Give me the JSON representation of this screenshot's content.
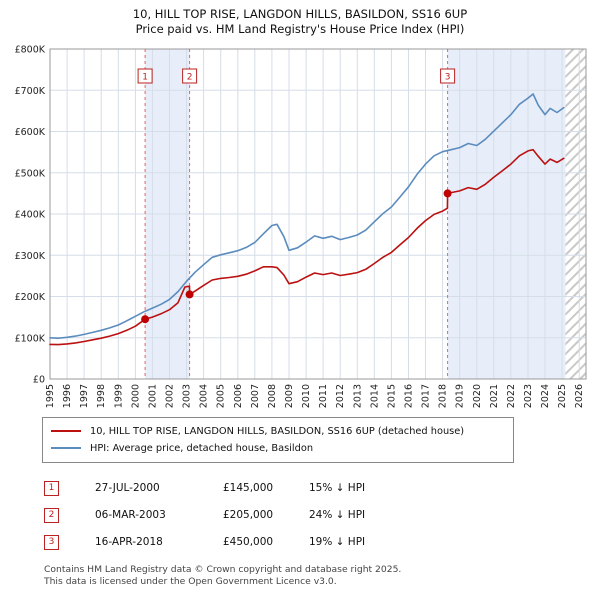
{
  "chart_data": {
    "type": "line",
    "title": "10, HILL TOP RISE, LANGDON HILLS, BASILDON, SS16 6UP",
    "subtitle": "Price paid vs. HM Land Registry's House Price Index (HPI)",
    "xlim": [
      1995,
      2026.4
    ],
    "ylim": [
      0,
      800000
    ],
    "x_ticks": [
      1995,
      1996,
      1997,
      1998,
      1999,
      2000,
      2001,
      2002,
      2003,
      2004,
      2005,
      2006,
      2007,
      2008,
      2009,
      2010,
      2011,
      2012,
      2013,
      2014,
      2015,
      2016,
      2017,
      2018,
      2019,
      2020,
      2021,
      2022,
      2023,
      2024,
      2025,
      2026
    ],
    "y_ticks": [
      0,
      100000,
      200000,
      300000,
      400000,
      500000,
      600000,
      700000,
      800000
    ],
    "y_tick_labels": [
      "£0",
      "£100K",
      "£200K",
      "£300K",
      "£400K",
      "£500K",
      "£600K",
      "£700K",
      "£800K"
    ],
    "grid": true,
    "legend_position": "below",
    "band_color": "#e7eef9",
    "hatch_start": 2025.2,
    "bands": [
      [
        2000.57,
        2003.18
      ],
      [
        2018.29,
        2025.2
      ]
    ],
    "series": [
      {
        "name": "10, HILL TOP RISE, LANGDON HILLS, BASILDON, SS16 6UP (detached house)",
        "color": "#bb1111",
        "x": [
          1995.0,
          1995.5,
          1996.0,
          1996.5,
          1997.0,
          1997.5,
          1998.0,
          1998.5,
          1999.0,
          1999.5,
          2000.0,
          2000.57,
          2001.0,
          2001.5,
          2002.0,
          2002.5,
          2002.9,
          2003.17,
          2003.18,
          2003.5,
          2004.0,
          2004.5,
          2005.0,
          2005.5,
          2006.0,
          2006.5,
          2007.0,
          2007.5,
          2008.0,
          2008.3,
          2008.7,
          2009.0,
          2009.5,
          2010.0,
          2010.5,
          2011.0,
          2011.5,
          2012.0,
          2012.5,
          2013.0,
          2013.5,
          2014.0,
          2014.5,
          2015.0,
          2015.5,
          2016.0,
          2016.5,
          2017.0,
          2017.5,
          2018.0,
          2018.28,
          2018.29,
          2018.5,
          2019.0,
          2019.5,
          2020.0,
          2020.5,
          2021.0,
          2021.5,
          2022.0,
          2022.5,
          2023.0,
          2023.3,
          2023.6,
          2024.0,
          2024.3,
          2024.7,
          2025.1
        ],
        "values": [
          84000,
          83500,
          85000,
          87500,
          91000,
          95000,
          99000,
          104000,
          110000,
          118000,
          128000,
          145000,
          150000,
          158000,
          168000,
          185000,
          223000,
          225000,
          205000,
          213000,
          227000,
          240000,
          244000,
          246000,
          249000,
          254000,
          262000,
          272000,
          272000,
          270000,
          252000,
          231000,
          236000,
          247000,
          257000,
          253000,
          257000,
          251000,
          254000,
          258000,
          266000,
          280000,
          295000,
          307000,
          325000,
          343000,
          365000,
          384000,
          399000,
          407000,
          414000,
          450000,
          452000,
          456000,
          464000,
          460000,
          472000,
          489000,
          505000,
          521000,
          541000,
          553000,
          556000,
          540000,
          521000,
          533000,
          525000,
          535000
        ]
      },
      {
        "name": "HPI: Average price, detached house, Basildon",
        "color": "#5b8cbe",
        "x": [
          1995.0,
          1995.5,
          1996.0,
          1996.5,
          1997.0,
          1997.5,
          1998.0,
          1998.5,
          1999.0,
          1999.5,
          2000.0,
          2000.5,
          2001.0,
          2001.5,
          2002.0,
          2002.5,
          2003.0,
          2003.5,
          2004.0,
          2004.5,
          2005.0,
          2005.5,
          2006.0,
          2006.5,
          2007.0,
          2007.5,
          2008.0,
          2008.3,
          2008.7,
          2009.0,
          2009.5,
          2010.0,
          2010.5,
          2011.0,
          2011.5,
          2012.0,
          2012.5,
          2013.0,
          2013.5,
          2014.0,
          2014.5,
          2015.0,
          2015.5,
          2016.0,
          2016.5,
          2017.0,
          2017.5,
          2018.0,
          2018.5,
          2019.0,
          2019.5,
          2020.0,
          2020.5,
          2021.0,
          2021.5,
          2022.0,
          2022.5,
          2023.0,
          2023.3,
          2023.6,
          2024.0,
          2024.3,
          2024.7,
          2025.1
        ],
        "values": [
          100000,
          99000,
          101000,
          104000,
          108000,
          113000,
          118000,
          124000,
          131000,
          141000,
          152000,
          163000,
          172000,
          181000,
          193000,
          212000,
          237000,
          259000,
          277000,
          295000,
          301000,
          306000,
          311000,
          319000,
          331000,
          352000,
          372000,
          375000,
          345000,
          312000,
          318000,
          332000,
          347000,
          341000,
          346000,
          338000,
          343000,
          349000,
          361000,
          381000,
          401000,
          417000,
          441000,
          466000,
          496000,
          521000,
          541000,
          551000,
          556000,
          561000,
          571000,
          566000,
          581000,
          601000,
          621000,
          641000,
          666000,
          681000,
          691000,
          664000,
          641000,
          656000,
          646000,
          658000
        ]
      }
    ],
    "sales": [
      {
        "label": "1",
        "x": 2000.57,
        "value": 145000
      },
      {
        "label": "2",
        "x": 2003.18,
        "value": 205000
      },
      {
        "label": "3",
        "x": 2018.29,
        "value": 450000
      }
    ],
    "marker_color": "#c00000",
    "sale_line_color": "#e06666"
  },
  "legend": {
    "entries": [
      {
        "label": "10, HILL TOP RISE, LANGDON HILLS, BASILDON, SS16 6UP (detached house)",
        "color": "#bb1111"
      },
      {
        "label": "HPI: Average price, detached house, Basildon",
        "color": "#5b8cbe"
      }
    ]
  },
  "table": {
    "rows": [
      {
        "n": "1",
        "date": "27-JUL-2000",
        "price": "£145,000",
        "hpi": "15% ↓ HPI"
      },
      {
        "n": "2",
        "date": "06-MAR-2003",
        "price": "£205,000",
        "hpi": "24% ↓ HPI"
      },
      {
        "n": "3",
        "date": "16-APR-2018",
        "price": "£450,000",
        "hpi": "19% ↓ HPI"
      }
    ]
  },
  "footer": {
    "line1": "Contains HM Land Registry data © Crown copyright and database right 2025.",
    "line2": "This data is licensed under the Open Government Licence v3.0."
  }
}
